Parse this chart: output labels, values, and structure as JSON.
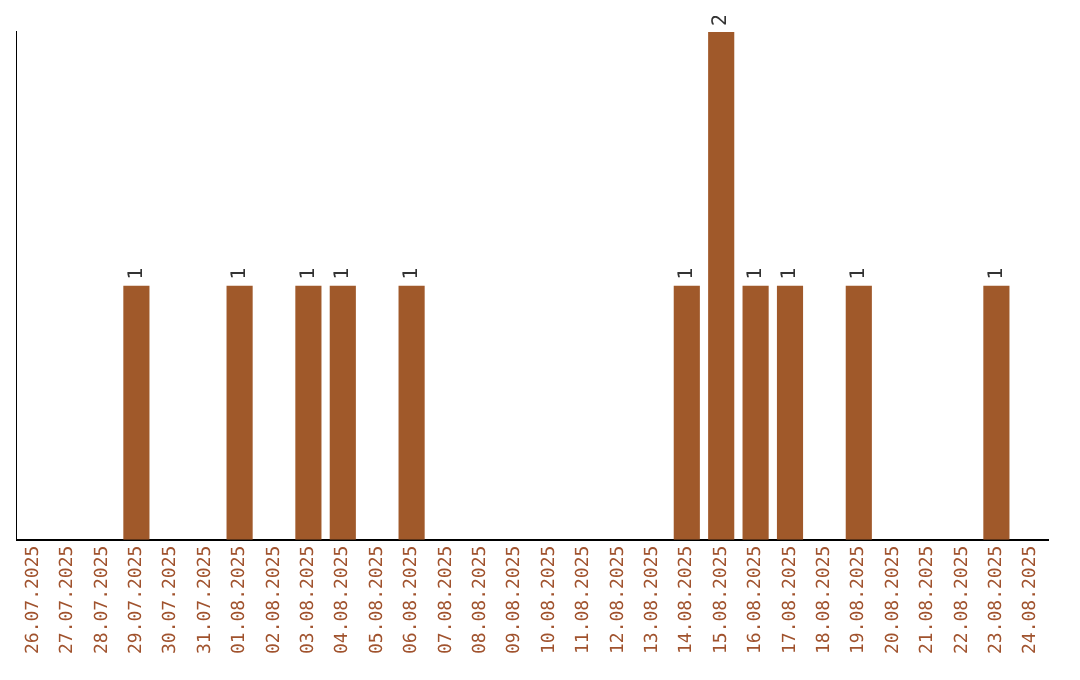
{
  "chart_data": {
    "type": "bar",
    "categories": [
      "26.07.2025",
      "27.07.2025",
      "28.07.2025",
      "29.07.2025",
      "30.07.2025",
      "31.07.2025",
      "01.08.2025",
      "02.08.2025",
      "03.08.2025",
      "04.08.2025",
      "05.08.2025",
      "06.08.2025",
      "07.08.2025",
      "08.08.2025",
      "09.08.2025",
      "10.08.2025",
      "11.08.2025",
      "12.08.2025",
      "13.08.2025",
      "14.08.2025",
      "15.08.2025",
      "16.08.2025",
      "17.08.2025",
      "18.08.2025",
      "19.08.2025",
      "20.08.2025",
      "21.08.2025",
      "22.08.2025",
      "23.08.2025",
      "24.08.2025"
    ],
    "values": [
      0,
      0,
      0,
      1,
      0,
      0,
      1,
      0,
      1,
      1,
      0,
      1,
      0,
      0,
      0,
      0,
      0,
      0,
      0,
      1,
      2,
      1,
      1,
      0,
      1,
      0,
      0,
      0,
      1,
      0
    ],
    "value_labels": [
      null,
      null,
      null,
      "1",
      null,
      null,
      "1",
      null,
      "1",
      "1",
      null,
      "1",
      null,
      null,
      null,
      null,
      null,
      null,
      null,
      "1",
      "2",
      "1",
      "1",
      null,
      "1",
      null,
      null,
      null,
      "1",
      null
    ],
    "color": "#a0592a",
    "grid": false,
    "legend": false,
    "tick_labels": "x"
  }
}
